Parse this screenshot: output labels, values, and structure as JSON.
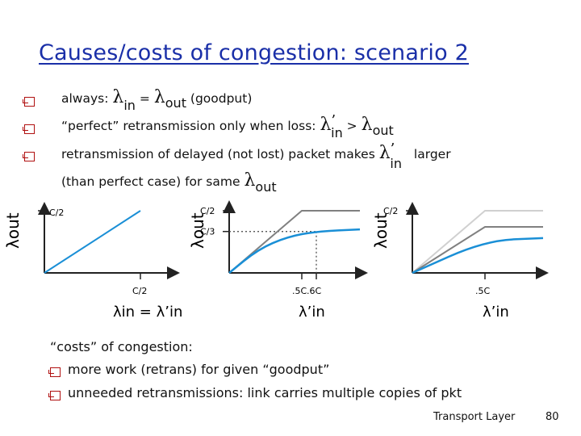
{
  "slide": {
    "title": "Causes/costs of congestion: scenario 2",
    "bullets": [
      {
        "pre": "always:",
        "lam1": "λ",
        "sub1": "in",
        "eq": "=",
        "lam2": "λ",
        "sub2": "out",
        "post": "(goodput)"
      },
      {
        "pre": "“perfect” retransmission only when loss:",
        "lam1": "λ",
        "prime": "’",
        "sub1": "in",
        "gt": ">",
        "lam2": "λ",
        "sub2": "out"
      },
      {
        "pre": "retransmission of delayed (not lost) packet makes",
        "lam1": "λ",
        "prime": "’",
        "sub1": "in",
        "post": "larger"
      }
    ],
    "bullet3_line2": {
      "pre": "(than perfect case) for same",
      "lam": "λ",
      "sub": "out"
    },
    "costs_heading": "“costs” of congestion:",
    "costs_bullets": [
      "more work (retrans) for given “goodput”",
      "unneeded retransmissions: link carries multiple copies of pkt"
    ],
    "footer": {
      "label": "Transport Layer",
      "page": "80"
    }
  },
  "colors": {
    "title": "#1a2fa8",
    "bullet_box": "#b01010",
    "curve": "#1a8fd6",
    "gray": "#808080"
  },
  "chart_data": [
    {
      "type": "line",
      "ylabel": "λout",
      "xlabel": "λin = λ’in",
      "ytick_label": "C/2",
      "xtick_label": "C/2",
      "series": [
        {
          "x": [
            0,
            0.5
          ],
          "y": [
            0,
            0.5
          ]
        }
      ]
    },
    {
      "type": "line",
      "ylabel": "λout",
      "xlabel": "λ’in",
      "ytick_labels": [
        "C/2",
        "C/3"
      ],
      "xtick_labels": [
        ".5C",
        ".6C"
      ],
      "series": [
        {
          "x": [
            0,
            0.5,
            0.9
          ],
          "y": [
            0,
            0.5,
            0.5
          ]
        },
        {
          "x": [
            0,
            0.2,
            0.4,
            0.6,
            0.9
          ],
          "y": [
            0,
            0.19,
            0.29,
            0.333,
            0.35
          ]
        }
      ]
    },
    {
      "type": "line",
      "ylabel": "λout",
      "xlabel": "λ’in",
      "ytick_labels": [
        "C/2"
      ],
      "xtick_labels": [
        ".5C"
      ],
      "series": [
        {
          "x": [
            0,
            0.5,
            0.9
          ],
          "y": [
            0,
            0.5,
            0.5
          ]
        },
        {
          "x": [
            0,
            0.5,
            0.9
          ],
          "y": [
            0,
            0.37,
            0.37
          ]
        },
        {
          "x": [
            0,
            0.5,
            0.9
          ],
          "y": [
            0,
            0.26,
            0.28
          ]
        }
      ]
    }
  ]
}
